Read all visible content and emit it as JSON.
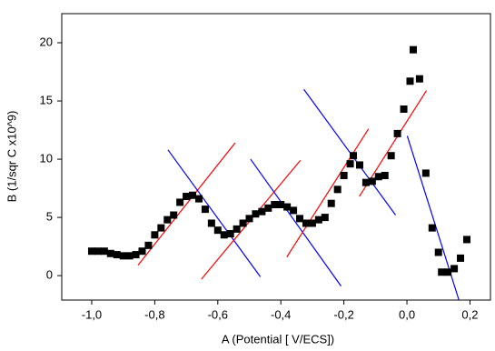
{
  "chart_data": {
    "type": "scatter",
    "x_label": "A (Potential [ V/ECS])",
    "y_label": "B (1/sqr C x10^9)",
    "color": "#000000",
    "x": [
      -1.0,
      -0.98,
      -0.96,
      -0.94,
      -0.92,
      -0.9,
      -0.88,
      -0.86,
      -0.84,
      -0.82,
      -0.8,
      -0.78,
      -0.76,
      -0.74,
      -0.72,
      -0.7,
      -0.68,
      -0.66,
      -0.64,
      -0.62,
      -0.6,
      -0.58,
      -0.56,
      -0.54,
      -0.52,
      -0.5,
      -0.48,
      -0.46,
      -0.44,
      -0.42,
      -0.4,
      -0.38,
      -0.36,
      -0.34,
      -0.32,
      -0.3,
      -0.28,
      -0.26,
      -0.24,
      -0.22,
      -0.2,
      -0.18,
      -0.17,
      -0.15,
      -0.13,
      -0.11,
      -0.09,
      -0.07,
      -0.05,
      -0.03,
      -0.01,
      0.01,
      0.02,
      0.04,
      0.06,
      0.08,
      0.1,
      0.11,
      0.13,
      0.15,
      0.17,
      0.19
    ],
    "values": [
      2.1,
      2.1,
      2.1,
      1.9,
      1.8,
      1.7,
      1.7,
      1.8,
      2.1,
      2.6,
      3.5,
      4.1,
      4.8,
      5.2,
      6.3,
      6.8,
      6.9,
      6.6,
      5.7,
      4.5,
      3.9,
      3.5,
      3.6,
      4.0,
      4.5,
      4.9,
      5.3,
      5.5,
      5.8,
      6.1,
      6.1,
      5.9,
      5.6,
      4.9,
      4.5,
      4.5,
      4.8,
      5.0,
      6.2,
      7.4,
      8.6,
      9.6,
      10.3,
      9.5,
      8.0,
      8.1,
      8.5,
      8.6,
      10.3,
      12.2,
      14.3,
      16.7,
      19.4,
      16.9,
      8.8,
      4.1,
      2.0,
      0.3,
      0.3,
      0.6,
      1.5,
      3.1
    ],
    "fit_lines": [
      {
        "color": "#ff0000",
        "x": [
          -0.853,
          -0.545
        ],
        "values": [
          0.9,
          11.4
        ]
      },
      {
        "color": "#0000ff",
        "x": [
          -0.758,
          -0.465
        ],
        "values": [
          10.8,
          -0.1
        ]
      },
      {
        "color": "#ff0000",
        "x": [
          -0.652,
          -0.338
        ],
        "values": [
          -0.3,
          9.9
        ]
      },
      {
        "color": "#0000ff",
        "x": [
          -0.496,
          -0.209
        ],
        "values": [
          10.0,
          -0.9
        ]
      },
      {
        "color": "#ff0000",
        "x": [
          -0.381,
          -0.122
        ],
        "values": [
          1.6,
          12.6
        ]
      },
      {
        "color": "#0000ff",
        "x": [
          -0.327,
          -0.036
        ],
        "values": [
          16.0,
          5.2
        ]
      },
      {
        "color": "#ff0000",
        "x": [
          -0.151,
          0.062
        ],
        "values": [
          6.8,
          15.9
        ]
      },
      {
        "color": "#0000ff",
        "x": [
          0.001,
          0.165
        ],
        "values": [
          12.0,
          -2.1
        ]
      }
    ],
    "xlim": [
      -1.095,
      0.265
    ],
    "ylim": [
      -2.1,
      22.5
    ],
    "xticks": [
      {
        "value": -1.0,
        "label": "-1,0"
      },
      {
        "value": -0.8,
        "label": "-0,8"
      },
      {
        "value": -0.6,
        "label": "-0,6"
      },
      {
        "value": -0.4,
        "label": "-0,4"
      },
      {
        "value": -0.2,
        "label": "-0,2"
      },
      {
        "value": 0.0,
        "label": "0,0"
      },
      {
        "value": 0.2,
        "label": "0,2"
      }
    ],
    "yticks": [
      0,
      5,
      10,
      15,
      20
    ]
  }
}
